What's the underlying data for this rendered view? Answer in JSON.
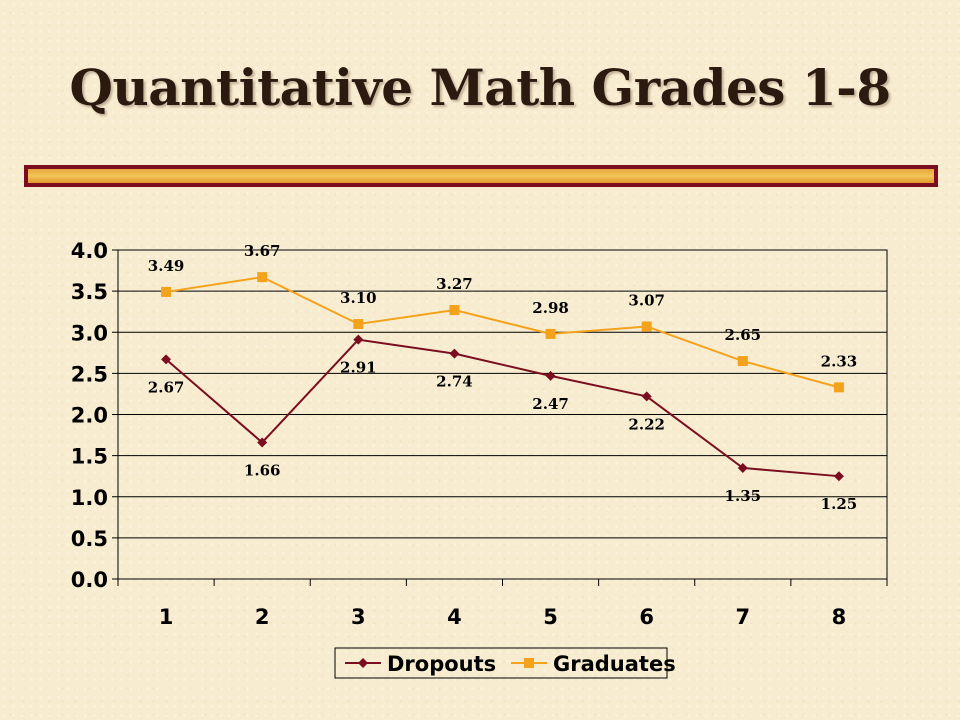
{
  "slide": {
    "title": "Quantitative Math Grades 1-8"
  },
  "chart_data": {
    "type": "line",
    "categories": [
      "1",
      "2",
      "3",
      "4",
      "5",
      "6",
      "7",
      "8"
    ],
    "ylim": [
      0,
      4
    ],
    "yticks": [
      "0.0",
      "0.5",
      "1.0",
      "1.5",
      "2.0",
      "2.5",
      "3.0",
      "3.5",
      "4.0"
    ],
    "grid": "horizontal",
    "legend_position": "bottom",
    "series": [
      {
        "name": "Dropouts",
        "values": [
          2.67,
          1.66,
          2.91,
          2.74,
          2.47,
          2.22,
          1.35,
          1.25
        ],
        "labels": [
          "2.67",
          "1.66",
          "2.91",
          "2.74",
          "2.47",
          "2.22",
          "1.35",
          "1.25"
        ],
        "color": "#7b0e1e",
        "marker": "diamond",
        "label_position": "below"
      },
      {
        "name": "Graduates",
        "values": [
          3.49,
          3.67,
          3.1,
          3.27,
          2.98,
          3.07,
          2.65,
          2.33
        ],
        "labels": [
          "3.49",
          "3.67",
          "3.10",
          "3.27",
          "2.98",
          "3.07",
          "2.65",
          "2.33"
        ],
        "color": "#f4a21c",
        "marker": "square",
        "label_position": "above"
      }
    ]
  }
}
